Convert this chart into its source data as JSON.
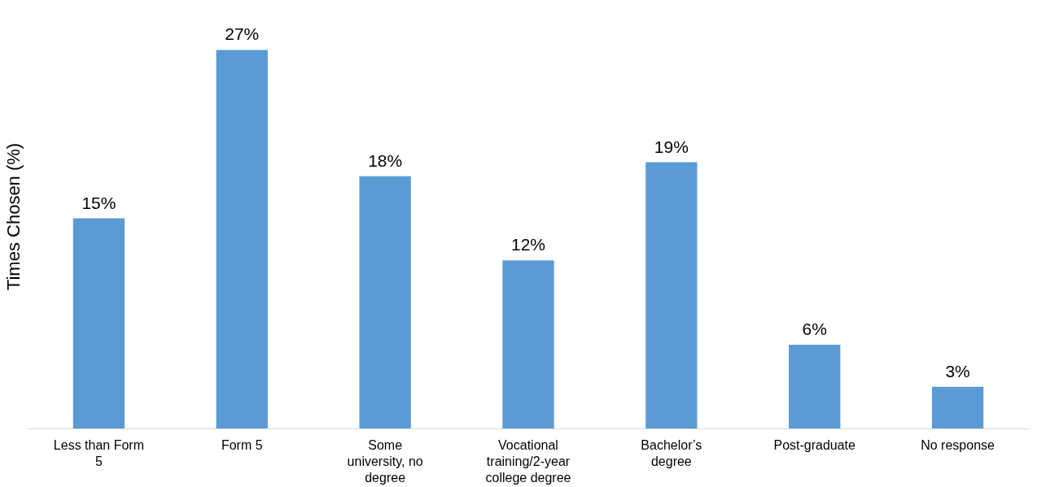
{
  "chart_data": {
    "type": "bar",
    "ylabel": "Times Chosen (%)",
    "categories": [
      "Less than Form 5",
      "Form 5",
      "Some university, no degree",
      "Vocational training/2-year college degree",
      "Bachelor’s degree",
      "Post-graduate",
      "No response"
    ],
    "values": [
      15,
      27,
      18,
      12,
      19,
      6,
      3
    ],
    "value_labels": [
      "15%",
      "27%",
      "18%",
      "12%",
      "19%",
      "6%",
      "3%"
    ],
    "color": "#5b9bd5",
    "tick_labels": "x"
  }
}
